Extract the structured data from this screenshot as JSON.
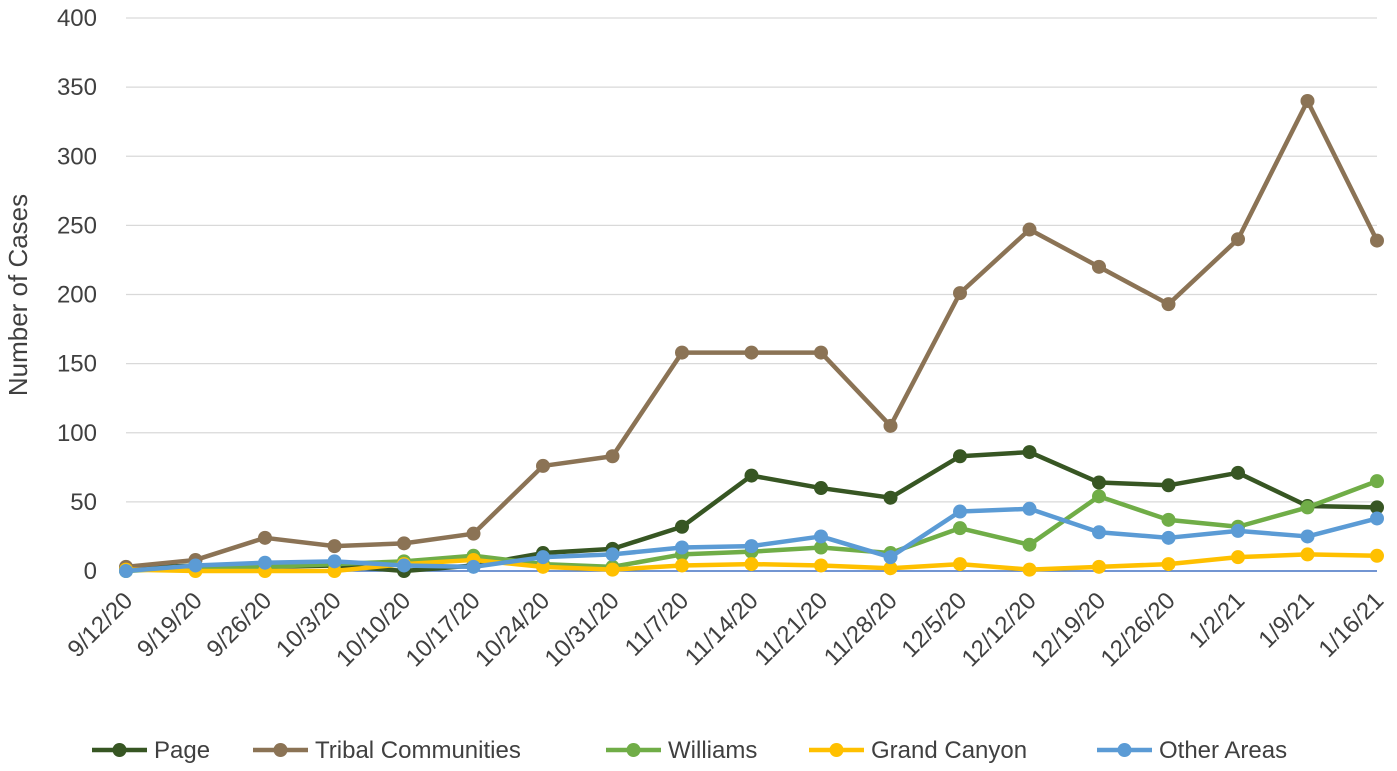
{
  "chart_data": {
    "type": "line",
    "title": "",
    "xlabel": "",
    "ylabel": "Number of Cases",
    "ylim": [
      0,
      400
    ],
    "yticks": [
      0,
      50,
      100,
      150,
      200,
      250,
      300,
      350,
      400
    ],
    "grid": true,
    "legend_position": "bottom",
    "categories": [
      "9/12/20",
      "9/19/20",
      "9/26/20",
      "10/3/20",
      "10/10/20",
      "10/17/20",
      "10/24/20",
      "10/31/20",
      "11/7/20",
      "11/14/20",
      "11/21/20",
      "11/28/20",
      "12/5/20",
      "12/12/20",
      "12/19/20",
      "12/26/20",
      "1/2/21",
      "1/9/21",
      "1/16/21"
    ],
    "series": [
      {
        "name": "Page",
        "color": "#375623",
        "values": [
          2,
          4,
          3,
          4,
          0,
          4,
          13,
          16,
          32,
          69,
          60,
          53,
          83,
          86,
          64,
          62,
          71,
          47,
          46
        ]
      },
      {
        "name": "Tribal Communities",
        "color": "#8B7355",
        "values": [
          3,
          8,
          24,
          18,
          20,
          27,
          76,
          83,
          158,
          158,
          158,
          105,
          201,
          247,
          220,
          193,
          240,
          340,
          239
        ]
      },
      {
        "name": "Williams",
        "color": "#70AD47",
        "values": [
          0,
          3,
          3,
          5,
          7,
          11,
          5,
          3,
          12,
          14,
          17,
          13,
          31,
          19,
          54,
          37,
          32,
          46,
          65
        ]
      },
      {
        "name": "Grand Canyon",
        "color": "#FFC000",
        "values": [
          1,
          0,
          0,
          0,
          5,
          8,
          3,
          1,
          4,
          5,
          4,
          2,
          5,
          1,
          3,
          5,
          10,
          12,
          11
        ]
      },
      {
        "name": "Other Areas",
        "color": "#5B9BD5",
        "values": [
          0,
          4,
          6,
          7,
          4,
          3,
          10,
          12,
          17,
          18,
          25,
          10,
          43,
          45,
          28,
          24,
          29,
          25,
          38
        ]
      }
    ]
  }
}
